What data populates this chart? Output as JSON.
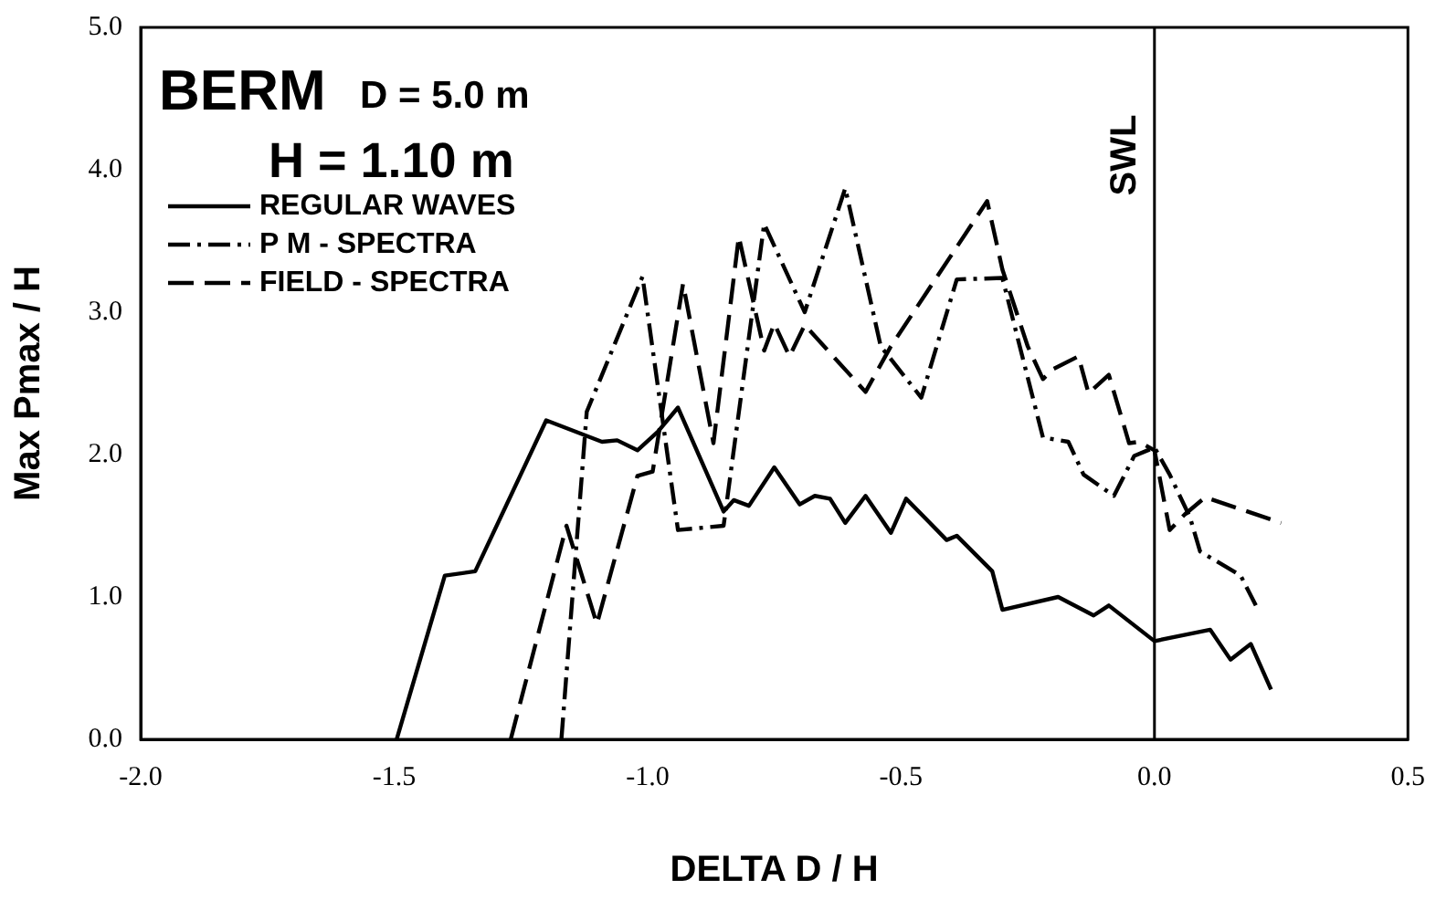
{
  "chart_data": {
    "type": "line",
    "title": "BERM",
    "annotations": [
      "D = 5.0 m",
      "H = 1.10 m"
    ],
    "xlabel": "DELTA D / H",
    "ylabel": "Max Pmax / H",
    "xlim": [
      -2.0,
      0.5
    ],
    "ylim": [
      0,
      5.0
    ],
    "xticks": [
      {
        "value": -2.0,
        "label": "-2.0"
      },
      {
        "value": -1.5,
        "label": "-1.5"
      },
      {
        "value": -1.0,
        "label": "-1.0"
      },
      {
        "value": -0.5,
        "label": "-0.5"
      },
      {
        "value": 0,
        "label": "0.0"
      },
      {
        "value": 0.5,
        "label": "0.5"
      }
    ],
    "yticks": [
      {
        "value": 0,
        "label": "0.0"
      },
      {
        "value": 1,
        "label": "1.0"
      },
      {
        "value": 2,
        "label": "2.0"
      },
      {
        "value": 3,
        "label": "3.0"
      },
      {
        "value": 4,
        "label": "4.0"
      },
      {
        "value": 5,
        "label": "5.0"
      }
    ],
    "grid": false,
    "legend": "top left",
    "marker": "none",
    "ref_lines": [
      {
        "axis": "x",
        "value": 0,
        "label": "SWL",
        "color": "#000000"
      }
    ],
    "series": [
      {
        "name": "REGULAR WAVES",
        "color": "#000000",
        "line_style": "solid",
        "x": [
          -1.495,
          -1.4,
          -1.34,
          -1.2,
          -1.09,
          -1.06,
          -1.02,
          -0.98,
          -0.94,
          -0.85,
          -0.83,
          -0.8,
          -0.75,
          -0.7,
          -0.67,
          -0.64,
          -0.61,
          -0.57,
          -0.52,
          -0.49,
          -0.41,
          -0.39,
          -0.32,
          -0.3,
          -0.19,
          -0.12,
          -0.09,
          0.0,
          0.11,
          0.15,
          0.19,
          0.23
        ],
        "values": [
          0,
          1.15,
          1.18,
          2.24,
          2.09,
          2.1,
          2.03,
          2.16,
          2.33,
          1.6,
          1.68,
          1.64,
          1.91,
          1.65,
          1.71,
          1.69,
          1.52,
          1.71,
          1.45,
          1.69,
          1.4,
          1.43,
          1.18,
          0.91,
          1.0,
          0.87,
          0.94,
          0.69,
          0.77,
          0.56,
          0.67,
          0.35
        ]
      },
      {
        "name": "P M - SPECTRA",
        "color": "#000000",
        "line_style": "dashdot",
        "x": [
          -1.17,
          -1.12,
          -1.01,
          -0.94,
          -0.85,
          -0.77,
          -0.69,
          -0.61,
          -0.54,
          -0.46,
          -0.39,
          -0.3,
          -0.22,
          -0.17,
          -0.14,
          -0.08,
          -0.04,
          0.0,
          0.03,
          0.07,
          0.09,
          0.17,
          0.2
        ],
        "values": [
          0,
          2.3,
          3.25,
          1.47,
          1.5,
          3.62,
          3.0,
          3.87,
          2.76,
          2.4,
          3.23,
          3.24,
          2.12,
          2.09,
          1.86,
          1.71,
          1.99,
          2.05,
          1.86,
          1.56,
          1.32,
          1.15,
          0.94
        ]
      },
      {
        "name": "FIELD - SPECTRA",
        "color": "#000000",
        "line_style": "dashed",
        "x": [
          -1.27,
          -1.16,
          -1.1,
          -1.02,
          -0.99,
          -0.93,
          -0.87,
          -0.82,
          -0.77,
          -0.75,
          -0.72,
          -0.69,
          -0.57,
          -0.52,
          -0.33,
          -0.3,
          -0.25,
          -0.22,
          -0.2,
          -0.15,
          -0.13,
          -0.09,
          -0.05,
          -0.03,
          0.0,
          0.03,
          0.06,
          0.1,
          0.25
        ],
        "values": [
          0,
          1.5,
          0.81,
          1.85,
          1.88,
          3.2,
          2.08,
          3.53,
          2.73,
          2.92,
          2.69,
          2.91,
          2.44,
          2.76,
          3.78,
          3.3,
          2.76,
          2.53,
          2.6,
          2.69,
          2.43,
          2.56,
          2.08,
          2.09,
          2.03,
          1.47,
          1.58,
          1.7,
          1.52
        ]
      }
    ]
  }
}
